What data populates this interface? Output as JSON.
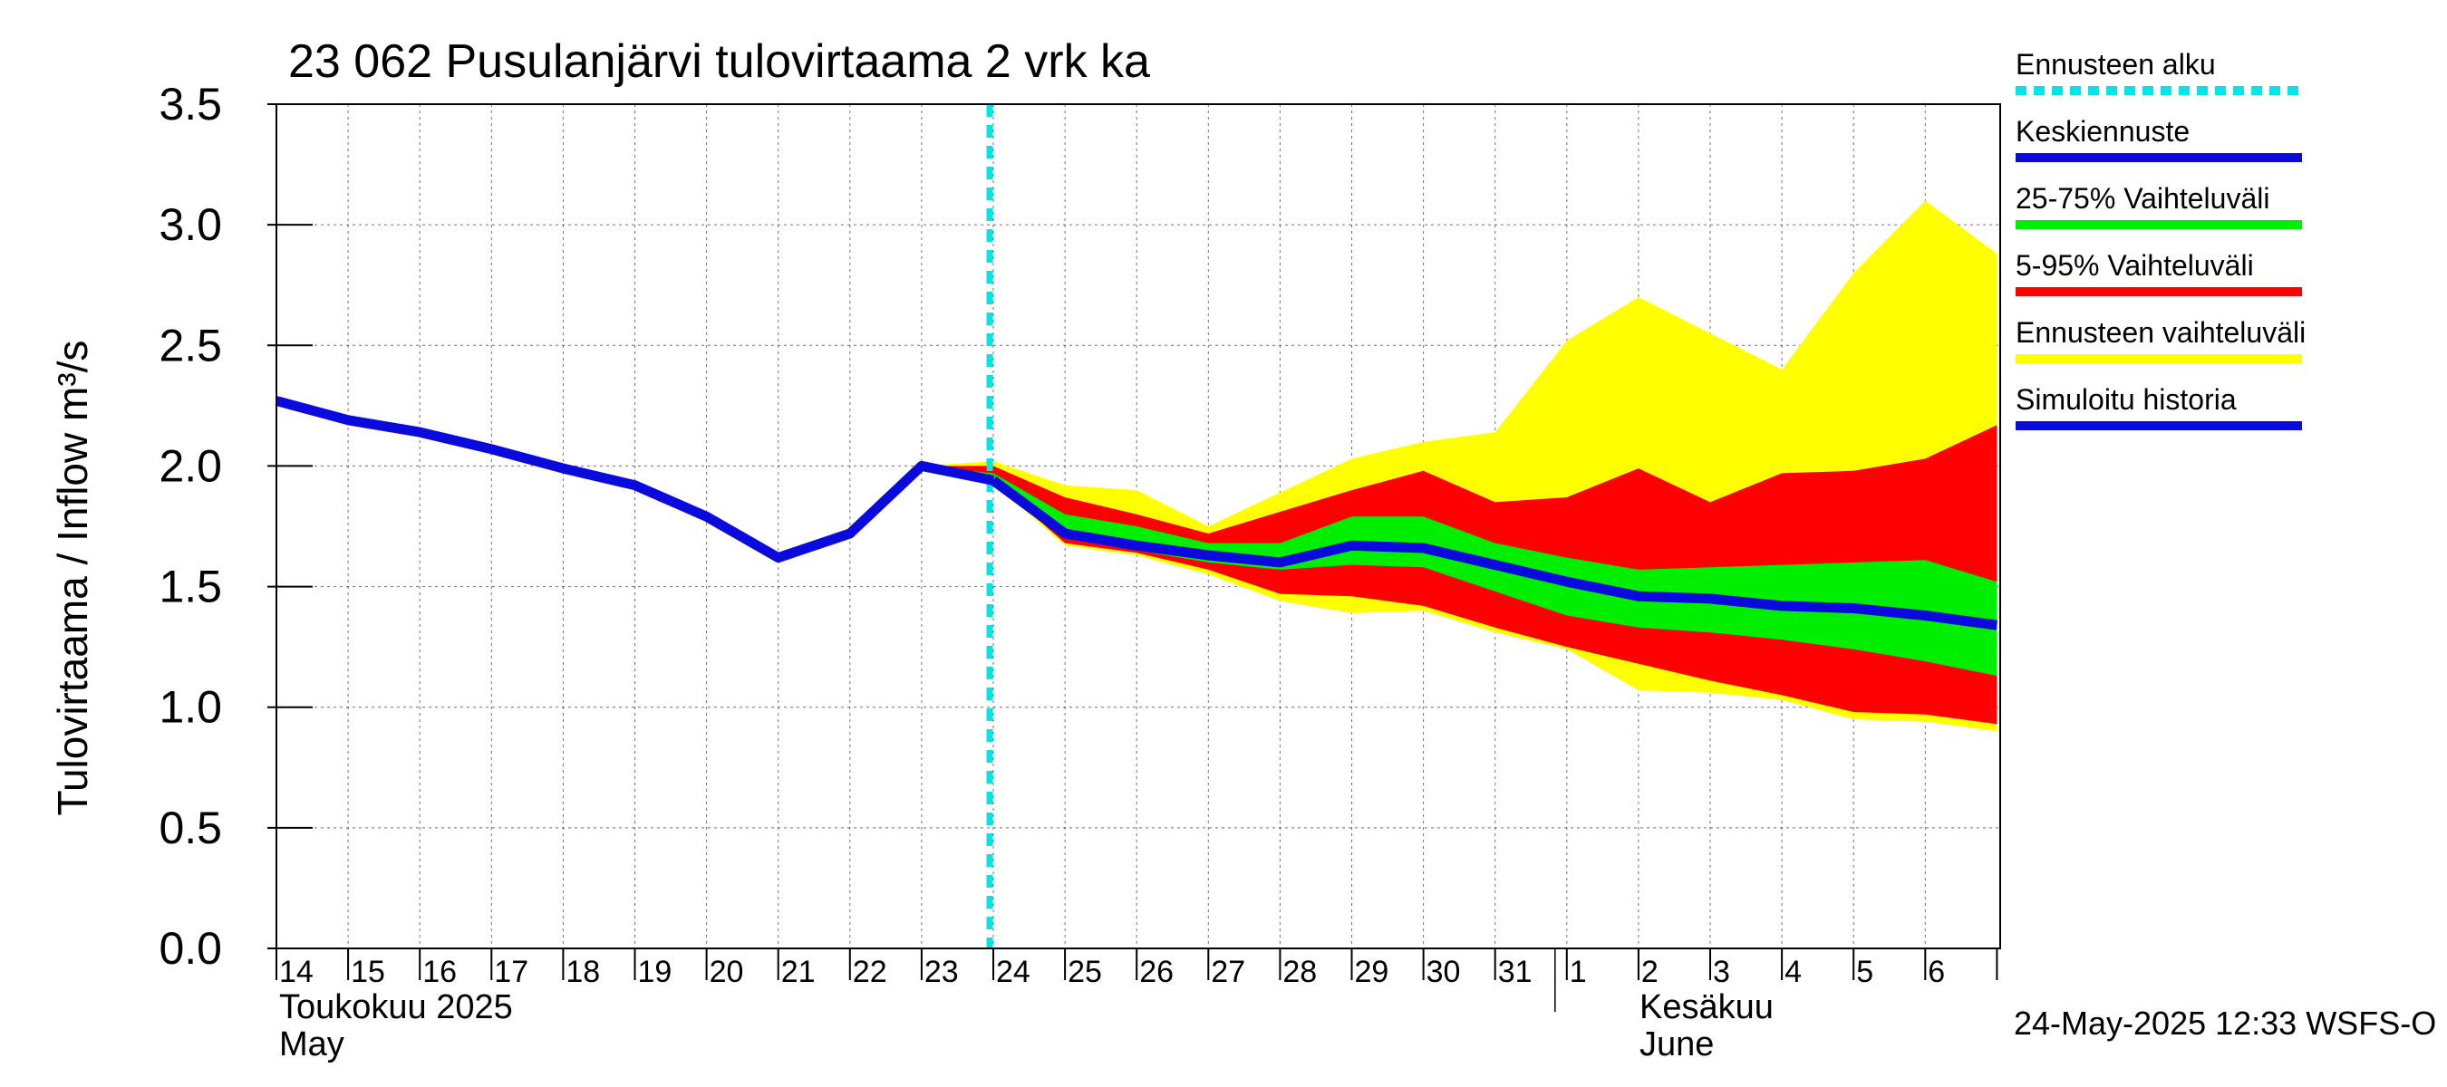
{
  "chart_data": {
    "type": "area",
    "title": "23 062 Pusulanjärvi tulovirtaama 2 vrk ka",
    "ylabel": "Tulovirtaama / Inflow    m³/s",
    "ylim": [
      0,
      3.5
    ],
    "y_ticks": [
      "0.0",
      "0.5",
      "1.0",
      "1.5",
      "2.0",
      "2.5",
      "3.0",
      "3.5"
    ],
    "x_ticks": [
      "14",
      "15",
      "16",
      "17",
      "18",
      "19",
      "20",
      "21",
      "22",
      "23",
      "24",
      "25",
      "26",
      "27",
      "28",
      "29",
      "30",
      "31",
      "1",
      "2",
      "3",
      "4",
      "5",
      "6"
    ],
    "month_labels": [
      {
        "line1": "Toukokuu  2025",
        "line2": "May"
      },
      {
        "line1": "Kesäkuu",
        "line2": "June"
      }
    ],
    "grid": true,
    "forecast_start_day": 23.95,
    "legend_placement": "right",
    "legend": [
      {
        "label": "Ennusteen alku",
        "color": "#00e5e5",
        "style": "dashed"
      },
      {
        "label": "Keskiennuste",
        "color": "#0a0adc",
        "style": "solid"
      },
      {
        "label": "25-75% Vaihteluväli",
        "color": "#00ee00",
        "style": "solid"
      },
      {
        "label": "5-95% Vaihteluväli",
        "color": "#ff0000",
        "style": "solid"
      },
      {
        "label": "Ennusteen vaihteluväli",
        "color": "#ffff00",
        "style": "solid"
      },
      {
        "label": "Simuloitu historia",
        "color": "#0a0adc",
        "style": "solid"
      }
    ],
    "series": [
      {
        "name": "Simuloitu historia",
        "x": [
          "14",
          "15",
          "16",
          "17",
          "18",
          "19",
          "20",
          "21",
          "22",
          "23",
          "24"
        ],
        "values": [
          2.27,
          2.19,
          2.14,
          2.07,
          1.99,
          1.92,
          1.79,
          1.62,
          1.72,
          2.0,
          1.94
        ]
      },
      {
        "name": "Keskiennuste",
        "x": [
          "24",
          "25",
          "26",
          "27",
          "28",
          "29",
          "30",
          "31",
          "1",
          "2",
          "3",
          "4",
          "5",
          "6",
          "7"
        ],
        "values": [
          1.94,
          1.72,
          1.67,
          1.63,
          1.6,
          1.67,
          1.66,
          1.59,
          1.52,
          1.46,
          1.45,
          1.42,
          1.41,
          1.38,
          1.34
        ]
      },
      {
        "name": "Ennusteen vaihteluväli",
        "x": [
          "23",
          "24",
          "25",
          "26",
          "27",
          "28",
          "29",
          "30",
          "31",
          "1",
          "2",
          "3",
          "4",
          "5",
          "6",
          "7"
        ],
        "upper": [
          2.0,
          2.02,
          1.92,
          1.9,
          1.75,
          1.89,
          2.03,
          2.1,
          2.14,
          2.52,
          2.7,
          2.55,
          2.4,
          2.8,
          3.1,
          2.88
        ],
        "lower": [
          2.0,
          1.93,
          1.67,
          1.63,
          1.55,
          1.44,
          1.39,
          1.4,
          1.31,
          1.24,
          1.07,
          1.06,
          1.03,
          0.95,
          0.94,
          0.9
        ]
      },
      {
        "name": "5-95% Vaihteluväli",
        "x": [
          "23",
          "24",
          "25",
          "26",
          "27",
          "28",
          "29",
          "30",
          "31",
          "1",
          "2",
          "3",
          "4",
          "5",
          "6",
          "7"
        ],
        "upper": [
          2.0,
          2.0,
          1.87,
          1.8,
          1.72,
          1.81,
          1.9,
          1.98,
          1.85,
          1.87,
          1.99,
          1.85,
          1.97,
          1.98,
          2.03,
          2.17
        ],
        "lower": [
          2.0,
          1.94,
          1.68,
          1.64,
          1.57,
          1.47,
          1.46,
          1.42,
          1.33,
          1.25,
          1.18,
          1.11,
          1.05,
          0.98,
          0.97,
          0.93
        ]
      },
      {
        "name": "25-75% Vaihteluväli",
        "x": [
          "23",
          "24",
          "25",
          "26",
          "27",
          "28",
          "29",
          "30",
          "31",
          "1",
          "2",
          "3",
          "4",
          "5",
          "6",
          "7"
        ],
        "upper": [
          2.0,
          1.97,
          1.8,
          1.75,
          1.68,
          1.68,
          1.79,
          1.79,
          1.68,
          1.62,
          1.57,
          1.58,
          1.59,
          1.6,
          1.61,
          1.52
        ],
        "lower": [
          2.0,
          1.95,
          1.7,
          1.65,
          1.6,
          1.57,
          1.59,
          1.58,
          1.48,
          1.38,
          1.33,
          1.31,
          1.28,
          1.24,
          1.19,
          1.13
        ]
      }
    ]
  },
  "footer": {
    "timestamp": "24-May-2025 12:33 WSFS-O"
  }
}
